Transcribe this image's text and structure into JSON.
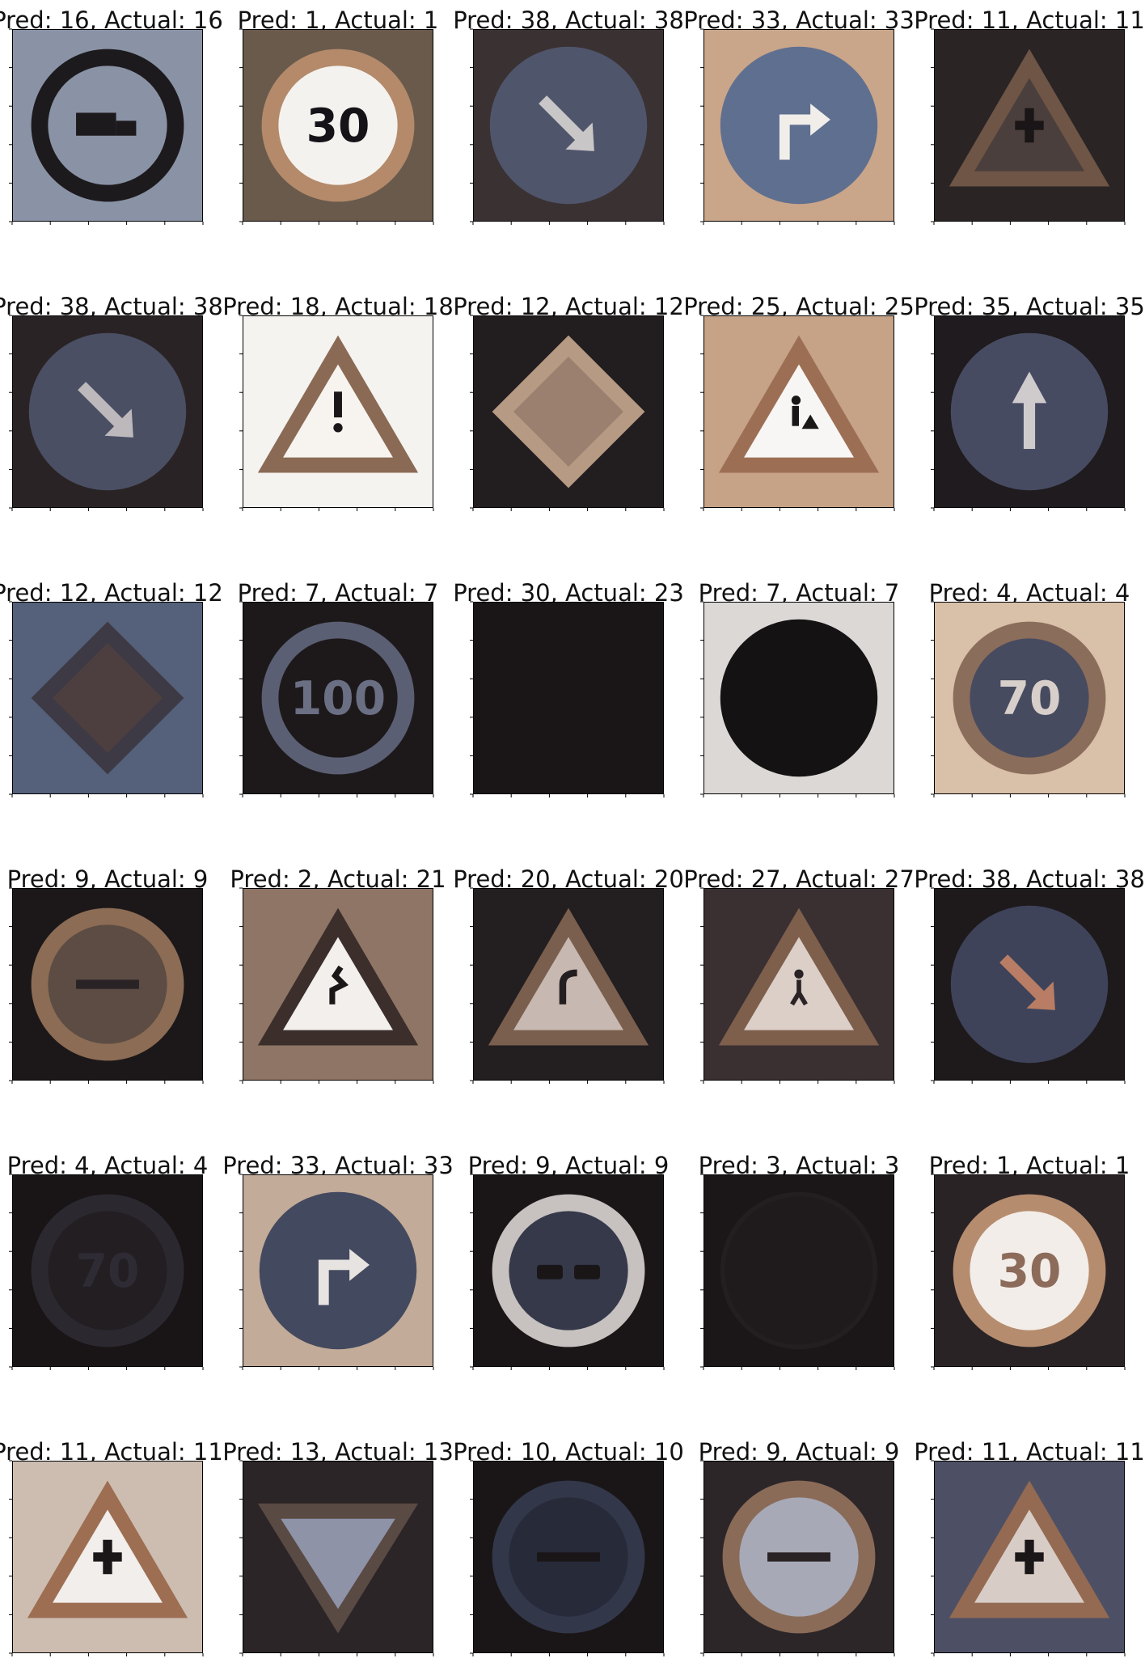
{
  "figure": {
    "rows": 6,
    "cols": 5,
    "panels": [
      {
        "title": "Pred: 16, Actual: 16",
        "sign": "no-trucks-sign",
        "shape": "ring",
        "bg": "#8a93a6",
        "ring": "#1c1a1c",
        "face": "#8a93a6",
        "symbol": "truck",
        "fg": "#1c1a1c"
      },
      {
        "title": "Pred: 1, Actual: 1",
        "sign": "speed-limit-30-sign",
        "shape": "ring",
        "bg": "#6a5a4c",
        "ring": "#b48a6a",
        "face": "#f4f2ee",
        "symbol": "text",
        "text": "30",
        "fg": "#151318"
      },
      {
        "title": "Pred: 38, Actual: 38",
        "sign": "keep-right-sign",
        "shape": "circle",
        "bg": "#3a3132",
        "ring": "#4f556b",
        "face": "#4f556b",
        "symbol": "arrow-dr",
        "fg": "#c9c6c8"
      },
      {
        "title": "Pred: 33, Actual: 33",
        "sign": "turn-right-ahead-sign",
        "shape": "circle",
        "bg": "#c9a58a",
        "ring": "#5f6f8f",
        "face": "#5f6f8f",
        "symbol": "turn-right",
        "fg": "#f1eeea"
      },
      {
        "title": "Pred: 11, Actual: 11",
        "sign": "right-of-way-sign",
        "shape": "triangle",
        "bg": "#2a2425",
        "ring": "#6e5546",
        "face": "#4a3f3c",
        "symbol": "cross",
        "fg": "#1a1516"
      },
      {
        "title": "Pred: 38, Actual: 38",
        "sign": "keep-right-sign",
        "shape": "circle",
        "bg": "#2a2325",
        "ring": "#4a4f63",
        "face": "#4a4f63",
        "symbol": "arrow-dr",
        "fg": "#bdb8bb"
      },
      {
        "title": "Pred: 18, Actual: 18",
        "sign": "general-caution-sign",
        "shape": "triangle",
        "bg": "#f5f3ef",
        "ring": "#8a6a55",
        "face": "#f7f4ef",
        "symbol": "exclaim",
        "fg": "#1b1719"
      },
      {
        "title": "Pred: 12, Actual: 12",
        "sign": "priority-road-sign",
        "shape": "diamond",
        "bg": "#221d1f",
        "ring": "#b69a84",
        "face": "#9b8070",
        "symbol": "none",
        "fg": "#000"
      },
      {
        "title": "Pred: 25, Actual: 25",
        "sign": "road-work-sign",
        "shape": "triangle",
        "bg": "#c6a286",
        "ring": "#9c6f55",
        "face": "#f8f6f4",
        "symbol": "worker",
        "fg": "#1b1719"
      },
      {
        "title": "Pred: 35, Actual: 35",
        "sign": "ahead-only-sign",
        "shape": "circle",
        "bg": "#1f1b1e",
        "ring": "#474b61",
        "face": "#474b61",
        "symbol": "arrow-up",
        "fg": "#cfcbcd"
      },
      {
        "title": "Pred: 12, Actual: 12",
        "sign": "priority-road-sign",
        "shape": "diamond",
        "bg": "#55607a",
        "ring": "#3d3a45",
        "face": "#4d3f40",
        "symbol": "none",
        "fg": "#000"
      },
      {
        "title": "Pred: 7, Actual: 7",
        "sign": "speed-limit-100-sign",
        "shape": "ring",
        "bg": "#1d191b",
        "ring": "#5b5f73",
        "face": "#1d191b",
        "symbol": "text",
        "text": "100",
        "fg": "#6b6f84"
      },
      {
        "title": "Pred: 30, Actual: 23",
        "sign": "dark-unreadable-sign",
        "shape": "none",
        "bg": "#1a1617",
        "ring": "#1a1617",
        "face": "#1a1617",
        "symbol": "none",
        "fg": "#000"
      },
      {
        "title": "Pred: 7, Actual: 7",
        "sign": "speed-limit-100-sign",
        "shape": "circle",
        "bg": "#dcd8d6",
        "ring": "#151214",
        "face": "#151214",
        "symbol": "none",
        "fg": "#000"
      },
      {
        "title": "Pred: 4, Actual: 4",
        "sign": "speed-limit-70-sign",
        "shape": "ring",
        "bg": "#d9c0a8",
        "ring": "#8b6d5b",
        "face": "#474b60",
        "symbol": "text",
        "text": "70",
        "fg": "#d8cfca"
      },
      {
        "title": "Pred: 9, Actual: 9",
        "sign": "no-passing-sign",
        "shape": "ring",
        "bg": "#1c1819",
        "ring": "#8c6c55",
        "face": "#5c4c43",
        "symbol": "bar",
        "fg": "#2a2326"
      },
      {
        "title": "Pred: 2, Actual: 21",
        "sign": "double-curve-sign",
        "shape": "triangle",
        "bg": "#8f7565",
        "ring": "#3b2e2b",
        "face": "#f2efec",
        "symbol": "curve",
        "fg": "#1b1719"
      },
      {
        "title": "Pred: 20, Actual: 20",
        "sign": "dangerous-curve-right-sign",
        "shape": "triangle",
        "bg": "#231e20",
        "ring": "#7a5f4e",
        "face": "#c7b9b1",
        "symbol": "bend",
        "fg": "#231e20"
      },
      {
        "title": "Pred: 27, Actual: 27",
        "sign": "pedestrians-sign",
        "shape": "triangle",
        "bg": "#3a3032",
        "ring": "#7e5f4c",
        "face": "#dbcfc8",
        "symbol": "person",
        "fg": "#2a2225"
      },
      {
        "title": "Pred: 38, Actual: 38",
        "sign": "keep-right-sign",
        "shape": "circle",
        "bg": "#1e1a1c",
        "ring": "#3e435a",
        "face": "#3e435a",
        "symbol": "arrow-dr",
        "fg": "#b87d64"
      },
      {
        "title": "Pred: 4, Actual: 4",
        "sign": "speed-limit-70-sign",
        "shape": "ring",
        "bg": "#191516",
        "ring": "#2c2830",
        "face": "#221e22",
        "symbol": "text",
        "text": "70",
        "fg": "#2f2b34"
      },
      {
        "title": "Pred: 33, Actual: 33",
        "sign": "turn-right-ahead-sign",
        "shape": "circle",
        "bg": "#c2ab98",
        "ring": "#43495f",
        "face": "#43495f",
        "symbol": "turn-right",
        "fg": "#e7e3e0"
      },
      {
        "title": "Pred: 9, Actual: 9",
        "sign": "no-passing-sign",
        "shape": "ring",
        "bg": "#1a1617",
        "ring": "#c7c1c0",
        "face": "#35394a",
        "symbol": "cars",
        "fg": "#1a1617"
      },
      {
        "title": "Pred: 3, Actual: 3",
        "sign": "speed-limit-60-sign",
        "shape": "circle",
        "bg": "#1b1718",
        "ring": "#231f21",
        "face": "#1f1b1d",
        "symbol": "none",
        "fg": "#000"
      },
      {
        "title": "Pred: 1, Actual: 1",
        "sign": "speed-limit-30-sign",
        "shape": "ring",
        "bg": "#2a2326",
        "ring": "#b68c6f",
        "face": "#f2ede8",
        "symbol": "text",
        "text": "30",
        "fg": "#8c6b5a"
      },
      {
        "title": "Pred: 11, Actual: 11",
        "sign": "right-of-way-sign",
        "shape": "triangle",
        "bg": "#cdbdb1",
        "ring": "#9d6e52",
        "face": "#f1eeeb",
        "symbol": "cross",
        "fg": "#1b1719"
      },
      {
        "title": "Pred: 13, Actual: 13",
        "sign": "yield-sign",
        "shape": "triangle-down",
        "bg": "#2c2528",
        "ring": "#5a4a44",
        "face": "#8e93a8",
        "symbol": "none",
        "fg": "#000"
      },
      {
        "title": "Pred: 10, Actual: 10",
        "sign": "no-passing-trucks-sign",
        "shape": "ring",
        "bg": "#1a1618",
        "ring": "#33374a",
        "face": "#272a38",
        "symbol": "bar",
        "fg": "#1a1618"
      },
      {
        "title": "Pred: 9, Actual: 9",
        "sign": "no-passing-sign",
        "shape": "ring",
        "bg": "#2c2629",
        "ring": "#8a6b58",
        "face": "#a7a9b6",
        "symbol": "bar",
        "fg": "#2a2326"
      },
      {
        "title": "Pred: 11, Actual: 11",
        "sign": "right-of-way-sign",
        "shape": "triangle",
        "bg": "#4d5064",
        "ring": "#946a52",
        "face": "#d8cdc6",
        "symbol": "cross",
        "fg": "#1b1719"
      }
    ]
  }
}
